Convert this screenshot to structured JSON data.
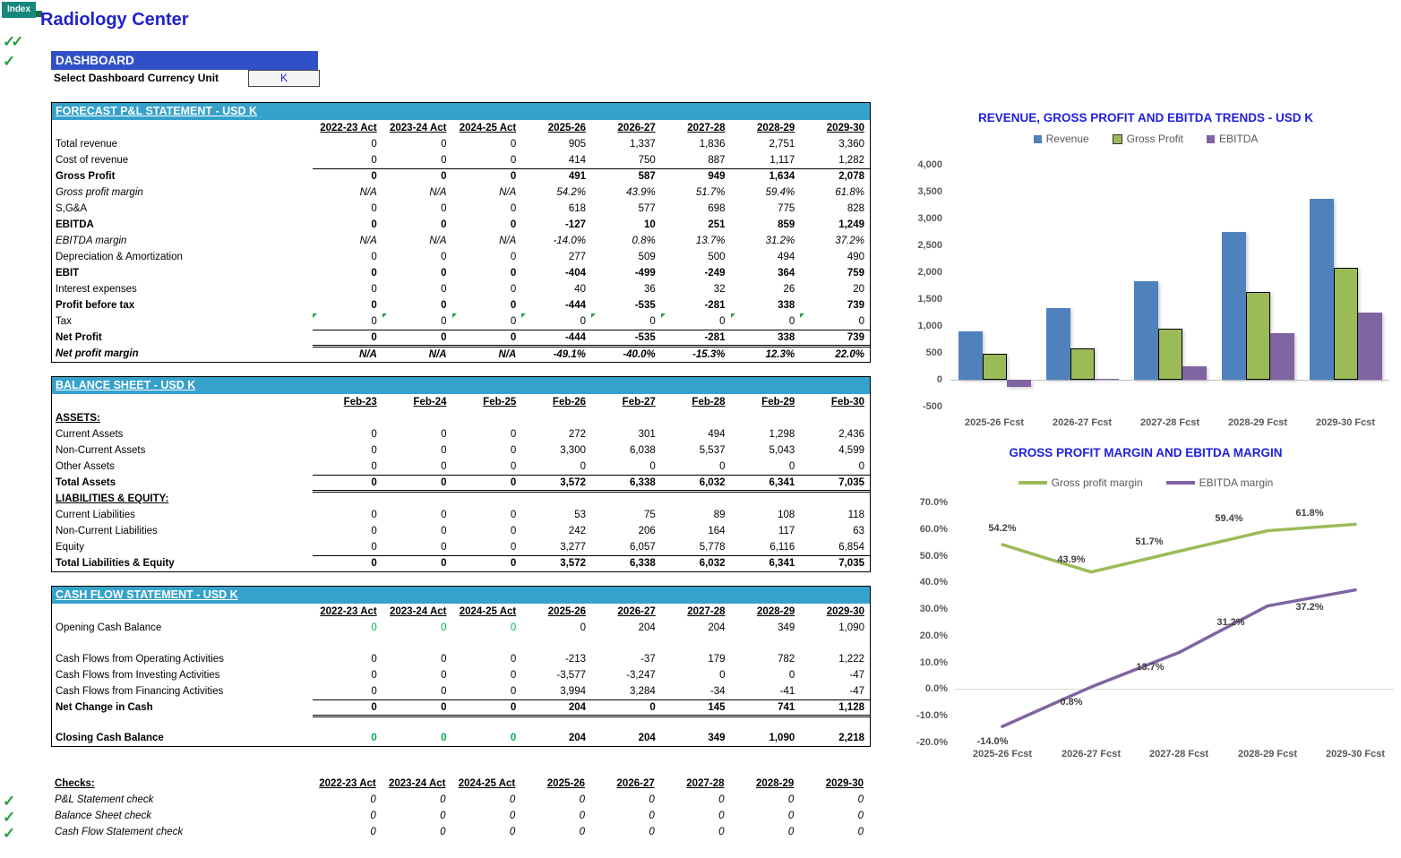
{
  "page": {
    "index_tab": "Index",
    "title": "Radiology Center"
  },
  "icons": {
    "check": "✓",
    "double_check": "✓✓"
  },
  "colors": {
    "header_blue": "#3050C8",
    "section_cyan": "#35A2CB",
    "title_blue": "#2121CE",
    "chart_title_blue": "#2020DD",
    "check_green": "#25A043",
    "cash_green": "#00B050",
    "revenue_blue": "#4F81BD",
    "gross_profit_green": "#9BBB59",
    "ebitda_purple": "#8064A2"
  },
  "dashboard": {
    "header": "DASHBOARD",
    "currency_label": "Select Dashboard Currency Unit",
    "currency_value": "K"
  },
  "pnl": {
    "title": "FORECAST P&L STATEMENT - USD K",
    "columns": [
      "2022-23 Act",
      "2023-24 Act",
      "2024-25 Act",
      "2025-26",
      "2026-27",
      "2027-28",
      "2028-29",
      "2029-30"
    ],
    "rows": [
      {
        "label": "Total revenue",
        "values": [
          "0",
          "0",
          "0",
          "905",
          "1,337",
          "1,836",
          "2,751",
          "3,360"
        ],
        "style": "plain"
      },
      {
        "label": "Cost of revenue",
        "values": [
          "0",
          "0",
          "0",
          "414",
          "750",
          "887",
          "1,117",
          "1,282"
        ],
        "style": "plain",
        "border": "bottom"
      },
      {
        "label": "Gross Profit",
        "values": [
          "0",
          "0",
          "0",
          "491",
          "587",
          "949",
          "1,634",
          "2,078"
        ],
        "style": "bold"
      },
      {
        "label": "Gross profit margin",
        "values": [
          "N/A",
          "N/A",
          "N/A",
          "54.2%",
          "43.9%",
          "51.7%",
          "59.4%",
          "61.8%"
        ],
        "style": "italic"
      },
      {
        "label": "S,G&A",
        "values": [
          "0",
          "0",
          "0",
          "618",
          "577",
          "698",
          "775",
          "828"
        ],
        "style": "plain"
      },
      {
        "label": "EBITDA",
        "values": [
          "0",
          "0",
          "0",
          "-127",
          "10",
          "251",
          "859",
          "1,249"
        ],
        "style": "bold"
      },
      {
        "label": "EBITDA margin",
        "values": [
          "N/A",
          "N/A",
          "N/A",
          "-14.0%",
          "0.8%",
          "13.7%",
          "31.2%",
          "37.2%"
        ],
        "style": "italic"
      },
      {
        "label": "Depreciation & Amortization",
        "values": [
          "0",
          "0",
          "0",
          "277",
          "509",
          "500",
          "494",
          "490"
        ],
        "style": "plain"
      },
      {
        "label": "EBIT",
        "values": [
          "0",
          "0",
          "0",
          "-404",
          "-499",
          "-249",
          "364",
          "759"
        ],
        "style": "bold"
      },
      {
        "label": "Interest expenses",
        "values": [
          "0",
          "0",
          "0",
          "40",
          "36",
          "32",
          "26",
          "20"
        ],
        "style": "plain"
      },
      {
        "label": "Profit before tax",
        "values": [
          "0",
          "0",
          "0",
          "-444",
          "-535",
          "-281",
          "338",
          "739"
        ],
        "style": "bold"
      },
      {
        "label": "Tax",
        "values": [
          "0",
          "0",
          "0",
          "0",
          "0",
          "0",
          "0",
          "0"
        ],
        "style": "plain",
        "border": "bottom",
        "flags": true
      },
      {
        "label": "Net Profit",
        "values": [
          "0",
          "0",
          "0",
          "-444",
          "-535",
          "-281",
          "338",
          "739"
        ],
        "style": "bold",
        "border": "double"
      },
      {
        "label": "Net profit margin",
        "values": [
          "N/A",
          "N/A",
          "N/A",
          "-49.1%",
          "-40.0%",
          "-15.3%",
          "12.3%",
          "22.0%"
        ],
        "style": "bolditalic"
      }
    ]
  },
  "balance": {
    "title": "BALANCE SHEET - USD K",
    "columns": [
      "Feb-23",
      "Feb-24",
      "Feb-25",
      "Feb-26",
      "Feb-27",
      "Feb-28",
      "Feb-29",
      "Feb-30"
    ],
    "rows": [
      {
        "label": "ASSETS:",
        "heading": true
      },
      {
        "label": "Current Assets",
        "values": [
          "0",
          "0",
          "0",
          "272",
          "301",
          "494",
          "1,298",
          "2,436"
        ],
        "style": "plain"
      },
      {
        "label": "Non-Current Assets",
        "values": [
          "0",
          "0",
          "0",
          "3,300",
          "6,038",
          "5,537",
          "5,043",
          "4,599"
        ],
        "style": "plain"
      },
      {
        "label": "Other Assets",
        "values": [
          "0",
          "0",
          "0",
          "0",
          "0",
          "0",
          "0",
          "0"
        ],
        "style": "plain",
        "border": "bottom"
      },
      {
        "label": "Total Assets",
        "values": [
          "0",
          "0",
          "0",
          "3,572",
          "6,338",
          "6,032",
          "6,341",
          "7,035"
        ],
        "style": "bold",
        "border": "double"
      },
      {
        "label": "LIABILITIES & EQUITY:",
        "heading": true
      },
      {
        "label": "Current Liabilities",
        "values": [
          "0",
          "0",
          "0",
          "53",
          "75",
          "89",
          "108",
          "118"
        ],
        "style": "plain"
      },
      {
        "label": "Non-Current Liabilities",
        "values": [
          "0",
          "0",
          "0",
          "242",
          "206",
          "164",
          "117",
          "63"
        ],
        "style": "plain"
      },
      {
        "label": "Equity",
        "values": [
          "0",
          "0",
          "0",
          "3,277",
          "6,057",
          "5,778",
          "6,116",
          "6,854"
        ],
        "style": "plain",
        "border": "bottom"
      },
      {
        "label": "Total Liabilities & Equity",
        "values": [
          "0",
          "0",
          "0",
          "3,572",
          "6,338",
          "6,032",
          "6,341",
          "7,035"
        ],
        "style": "bold"
      }
    ]
  },
  "cashflow": {
    "title": "CASH FLOW STATEMENT -  USD K",
    "columns": [
      "2022-23 Act",
      "2023-24 Act",
      "2024-25 Act",
      "2025-26",
      "2026-27",
      "2027-28",
      "2028-29",
      "2029-30"
    ],
    "rows": [
      {
        "label": "Opening Cash Balance",
        "values": [
          "0",
          "0",
          "0",
          "0",
          "204",
          "204",
          "349",
          "1,090"
        ],
        "style": "plain",
        "green_cols": [
          0,
          1,
          2
        ]
      },
      {
        "blank": true,
        "h": 17
      },
      {
        "label": "Cash Flows from Operating Activities",
        "values": [
          "0",
          "0",
          "0",
          "-213",
          "-37",
          "179",
          "782",
          "1,222"
        ],
        "style": "plain"
      },
      {
        "label": "Cash Flows from Investing Activities",
        "values": [
          "0",
          "0",
          "0",
          "-3,577",
          "-3,247",
          "0",
          "0",
          "-47"
        ],
        "style": "plain"
      },
      {
        "label": "Cash Flows from Financing Activities",
        "values": [
          "0",
          "0",
          "0",
          "3,994",
          "3,284",
          "-34",
          "-41",
          "-47"
        ],
        "style": "plain",
        "border": "bottom"
      },
      {
        "label": "Net Change in Cash",
        "values": [
          "0",
          "0",
          "0",
          "204",
          "0",
          "145",
          "741",
          "1,128"
        ],
        "style": "bold",
        "border": "double"
      },
      {
        "blank": true,
        "h": 16
      },
      {
        "label": "Closing Cash Balance",
        "values": [
          "0",
          "0",
          "0",
          "204",
          "204",
          "349",
          "1,090",
          "2,218"
        ],
        "style": "bold",
        "green_cols": [
          0,
          1,
          2
        ]
      }
    ]
  },
  "checks": {
    "label": "Checks:",
    "columns": [
      "2022-23 Act",
      "2023-24 Act",
      "2024-25 Act",
      "2025-26",
      "2026-27",
      "2027-28",
      "2028-29",
      "2029-30"
    ],
    "rows": [
      {
        "label": "P&L Statement check",
        "values": [
          "0",
          "0",
          "0",
          "0",
          "0",
          "0",
          "0",
          "0"
        ],
        "style": "italic"
      },
      {
        "label": "Balance Sheet check",
        "values": [
          "0",
          "0",
          "0",
          "0",
          "0",
          "0",
          "0",
          "0"
        ],
        "style": "italic"
      },
      {
        "label": "Cash Flow Statement check",
        "values": [
          "0",
          "0",
          "0",
          "0",
          "0",
          "0",
          "0",
          "0"
        ],
        "style": "italic"
      }
    ]
  },
  "chart_data": [
    {
      "type": "bar",
      "title": "REVENUE, GROSS PROFIT AND EBITDA TRENDS - USD K",
      "categories": [
        "2025-26 Fcst",
        "2026-27 Fcst",
        "2027-28 Fcst",
        "2028-29 Fcst",
        "2029-30 Fcst"
      ],
      "series": [
        {
          "name": "Revenue",
          "color": "#4F81BD",
          "values": [
            905,
            1337,
            1836,
            2751,
            3360
          ]
        },
        {
          "name": "Gross Profit",
          "color": "#9BBB59",
          "outline": "#000000",
          "values": [
            491,
            587,
            949,
            1634,
            2078
          ]
        },
        {
          "name": "EBITDA",
          "color": "#8064A2",
          "values": [
            -127,
            10,
            251,
            859,
            1249
          ]
        }
      ],
      "ylim": [
        -500,
        4000
      ],
      "ytick": 500,
      "grid": false,
      "legend_position": "top",
      "ytick_labels": [
        "4,000",
        "3,500",
        "3,000",
        "2,500",
        "2,000",
        "1,500",
        "1,000",
        "500",
        "0",
        "-500"
      ]
    },
    {
      "type": "line",
      "title": "GROSS PROFIT MARGIN AND EBITDA MARGIN",
      "categories": [
        "2025-26 Fcst",
        "2026-27 Fcst",
        "2027-28 Fcst",
        "2028-29 Fcst",
        "2029-30 Fcst"
      ],
      "series": [
        {
          "name": "Gross profit margin",
          "color": "#9BBB59",
          "values": [
            54.2,
            43.9,
            51.7,
            59.4,
            61.8
          ],
          "labels": [
            "54.2%",
            "43.9%",
            "51.7%",
            "59.4%",
            "61.8%"
          ]
        },
        {
          "name": "EBITDA margin",
          "color": "#8064A2",
          "values": [
            -14.0,
            0.8,
            13.7,
            31.2,
            37.2
          ],
          "labels": [
            "-14.0%",
            "0.8%",
            "13.7%",
            "31.2%",
            "37.2%"
          ]
        }
      ],
      "ylim": [
        -20,
        70
      ],
      "ytick": 10,
      "grid": false,
      "legend_position": "top",
      "ytick_labels": [
        "70.0%",
        "60.0%",
        "50.0%",
        "40.0%",
        "30.0%",
        "20.0%",
        "10.0%",
        "0.0%",
        "-10.0%",
        "-20.0%"
      ]
    }
  ]
}
